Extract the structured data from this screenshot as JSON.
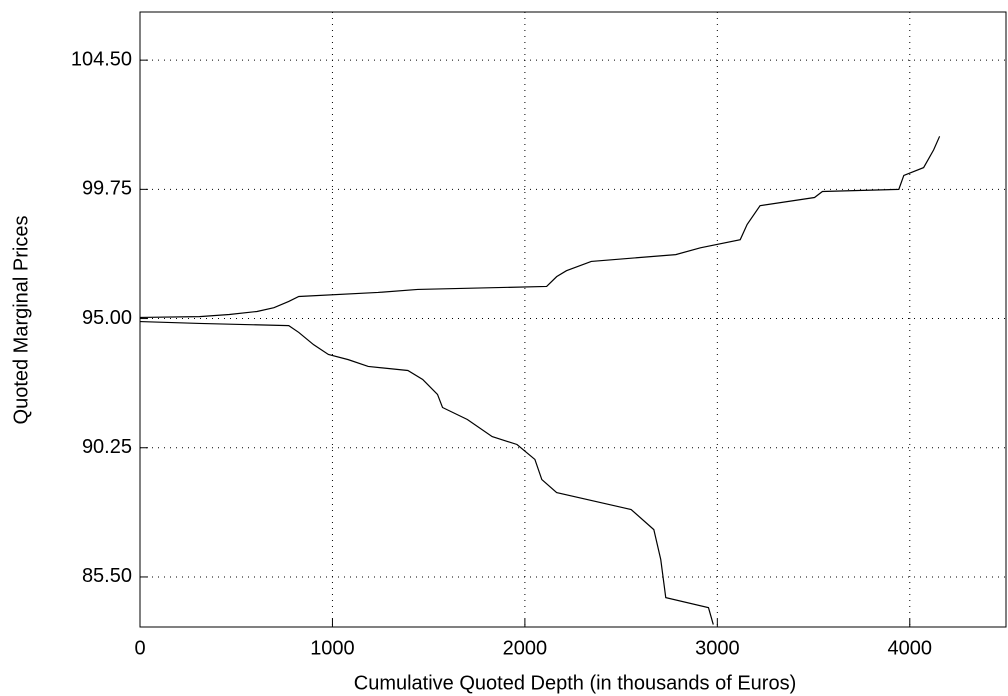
{
  "chart_data": {
    "type": "line",
    "x_label": "Cumulative Quoted Depth (in thousands of Euros)",
    "y_label": "Quoted Marginal Prices",
    "xlim": [
      0,
      4500
    ],
    "ylim": [
      83.66,
      106.27
    ],
    "xticks": [
      0,
      1000,
      2000,
      3000,
      4000
    ],
    "yticks": [
      {
        "value": 85.5,
        "label": "85.50"
      },
      {
        "value": 90.25,
        "label": "90.25"
      },
      {
        "value": 95,
        "label": "95.00"
      },
      {
        "value": 99.75,
        "label": "99.75"
      },
      {
        "value": 104.5,
        "label": "104.50"
      }
    ],
    "grid": true,
    "series": [
      {
        "color": "#000000",
        "x": [
          0,
          309,
          464,
          608,
          696,
          773,
          825,
          1237,
          1443,
          2113,
          2165,
          2216,
          2345,
          2784,
          2912,
          3119,
          3155,
          3222,
          3505,
          3546,
          3943,
          3969,
          4072,
          4124,
          4155
        ],
        "values": [
          95.04,
          95.07,
          95.15,
          95.26,
          95.4,
          95.63,
          95.81,
          95.96,
          96.07,
          96.18,
          96.54,
          96.76,
          97.1,
          97.35,
          97.6,
          97.9,
          98.46,
          99.15,
          99.45,
          99.67,
          99.75,
          100.26,
          100.55,
          101.2,
          101.7
        ]
      },
      {
        "color": "#000000",
        "x": [
          0,
          309,
          773,
          825,
          902,
          979,
          1082,
          1186,
          1392,
          1469,
          1546,
          1572,
          1701,
          1830,
          1959,
          2052,
          2088,
          2165,
          2552,
          2670,
          2706,
          2732,
          2954,
          2979
        ],
        "values": [
          94.89,
          94.82,
          94.74,
          94.49,
          94.04,
          93.68,
          93.49,
          93.24,
          93.09,
          92.76,
          92.21,
          91.73,
          91.29,
          90.66,
          90.37,
          89.82,
          89.08,
          88.6,
          87.98,
          87.24,
          86.14,
          84.74,
          84.37,
          83.75
        ]
      }
    ]
  }
}
